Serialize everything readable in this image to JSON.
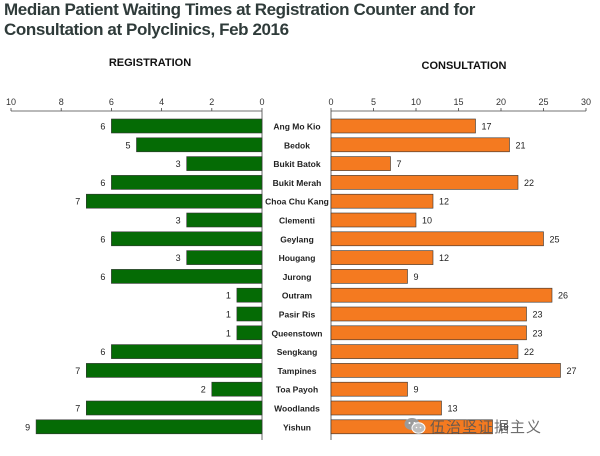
{
  "title": "Median Patient Waiting Times at Registration Counter and for Consultation at Polyclinics, Feb 2016",
  "watermark": {
    "text": "伍治坚证据主义",
    "icon": "wechat-icon"
  },
  "colors": {
    "registration": "#056b05",
    "consultation": "#f47a20",
    "border": "#333333"
  },
  "chart_data": [
    {
      "type": "bar",
      "title": "REGISTRATION",
      "orientation": "horizontal",
      "direction": "right-to-left",
      "xlim": [
        0,
        10
      ],
      "xticks": [
        10,
        8,
        6,
        4,
        2,
        0
      ],
      "categories": [
        "Ang Mo Kio",
        "Bedok",
        "Bukit Batok",
        "Bukit Merah",
        "Choa Chu Kang",
        "Clementi",
        "Geylang",
        "Hougang",
        "Jurong",
        "Outram",
        "Pasir Ris",
        "Queenstown",
        "Sengkang",
        "Tampines",
        "Toa Payoh",
        "Woodlands",
        "Yishun"
      ],
      "values": [
        6,
        5,
        3,
        6,
        7,
        3,
        6,
        3,
        6,
        1,
        1,
        1,
        6,
        7,
        2,
        7,
        9
      ]
    },
    {
      "type": "bar",
      "title": "CONSULTATION",
      "orientation": "horizontal",
      "xlim": [
        0,
        30
      ],
      "xticks": [
        0,
        5,
        10,
        15,
        20,
        25,
        30
      ],
      "categories": [
        "Ang Mo Kio",
        "Bedok",
        "Bukit Batok",
        "Bukit Merah",
        "Choa Chu Kang",
        "Clementi",
        "Geylang",
        "Hougang",
        "Jurong",
        "Outram",
        "Pasir Ris",
        "Queenstown",
        "Sengkang",
        "Tampines",
        "Toa Payoh",
        "Woodlands",
        "Yishun"
      ],
      "values": [
        17,
        21,
        7,
        22,
        12,
        10,
        25,
        12,
        9,
        26,
        23,
        23,
        22,
        27,
        9,
        13,
        19
      ]
    }
  ]
}
